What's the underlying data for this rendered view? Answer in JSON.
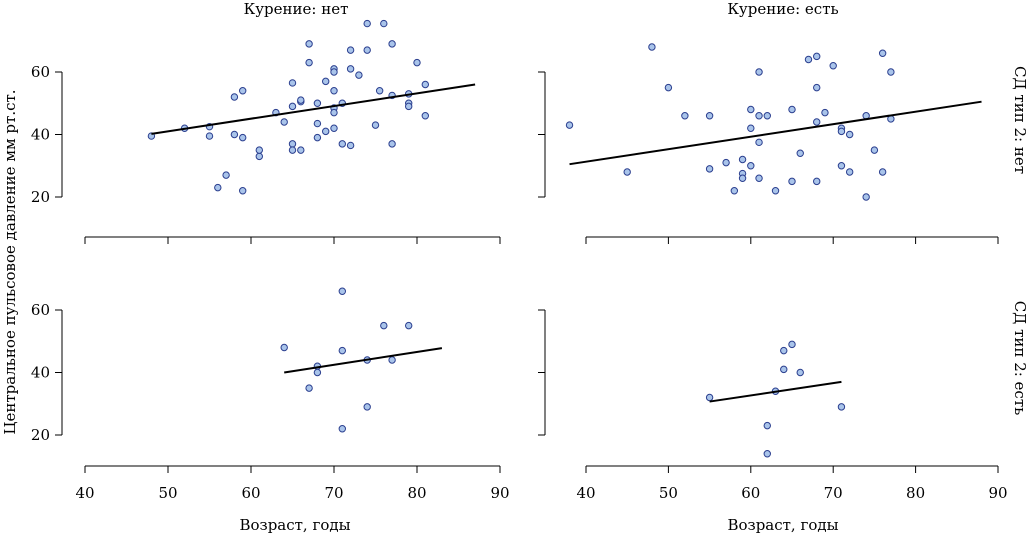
{
  "chart_data": {
    "type": "scatter",
    "layout": "2x2 facet grid",
    "ylabel": "Центральное пульсовое давление мм рт.ст.",
    "xlabel": "Возраст, годы",
    "col_labels": [
      "Курение: нет",
      "Курение: есть"
    ],
    "row_labels": [
      "СД тип 2: нет",
      "СД тип 2: есть"
    ],
    "xlim": [
      40,
      90
    ],
    "ylim": [
      12,
      76
    ],
    "x_ticks": [
      40,
      50,
      60,
      70,
      80,
      90
    ],
    "y_ticks": [
      20,
      40,
      60
    ],
    "grid": false,
    "point_color": "#a9c4ea",
    "point_edge_color": "#2b3f8f",
    "line_color": "#000000",
    "panels": [
      {
        "row": 0,
        "col": 0,
        "points": [
          [
            48,
            39.5
          ],
          [
            52,
            42
          ],
          [
            55,
            42.5
          ],
          [
            55,
            39.5
          ],
          [
            56,
            23
          ],
          [
            57,
            27
          ],
          [
            58,
            40
          ],
          [
            58,
            52
          ],
          [
            59,
            54
          ],
          [
            59,
            39
          ],
          [
            59,
            22
          ],
          [
            61,
            33
          ],
          [
            61,
            35
          ],
          [
            63,
            47
          ],
          [
            64,
            44
          ],
          [
            65,
            49
          ],
          [
            65,
            37
          ],
          [
            65,
            35
          ],
          [
            65,
            56.5
          ],
          [
            66,
            50.5
          ],
          [
            66,
            51
          ],
          [
            66,
            35
          ],
          [
            67,
            69
          ],
          [
            67,
            63
          ],
          [
            68,
            50
          ],
          [
            68,
            43.5
          ],
          [
            68,
            39
          ],
          [
            69,
            57
          ],
          [
            69,
            41
          ],
          [
            70,
            61
          ],
          [
            70,
            60
          ],
          [
            70,
            54
          ],
          [
            70,
            48.5
          ],
          [
            70,
            47
          ],
          [
            70,
            42
          ],
          [
            71,
            50
          ],
          [
            71,
            37
          ],
          [
            72,
            67
          ],
          [
            72,
            61
          ],
          [
            72,
            36.5
          ],
          [
            73,
            59
          ],
          [
            74,
            75.5
          ],
          [
            74,
            67
          ],
          [
            75,
            43
          ],
          [
            75.5,
            54
          ],
          [
            76,
            75.5
          ],
          [
            77,
            69
          ],
          [
            77,
            52.5
          ],
          [
            77,
            37
          ],
          [
            79,
            53
          ],
          [
            79,
            50
          ],
          [
            79,
            49
          ],
          [
            80,
            63
          ],
          [
            81,
            56
          ],
          [
            81,
            46
          ]
        ],
        "fit": [
          [
            48,
            40.2
          ],
          [
            87,
            56.0
          ]
        ]
      },
      {
        "row": 0,
        "col": 1,
        "points": [
          [
            38,
            43
          ],
          [
            45,
            28
          ],
          [
            48,
            68
          ],
          [
            50,
            55
          ],
          [
            52,
            46
          ],
          [
            55,
            29
          ],
          [
            55,
            46
          ],
          [
            57,
            31
          ],
          [
            58,
            22
          ],
          [
            59,
            32
          ],
          [
            59,
            27.5
          ],
          [
            59,
            26
          ],
          [
            60,
            48
          ],
          [
            60,
            42
          ],
          [
            60,
            30
          ],
          [
            61,
            60
          ],
          [
            61,
            46
          ],
          [
            61,
            37.5
          ],
          [
            61,
            26
          ],
          [
            62,
            46
          ],
          [
            63,
            22
          ],
          [
            65,
            48
          ],
          [
            65,
            25
          ],
          [
            66,
            34
          ],
          [
            67,
            64
          ],
          [
            68,
            65
          ],
          [
            68,
            55
          ],
          [
            68,
            44
          ],
          [
            68,
            25
          ],
          [
            69,
            47
          ],
          [
            70,
            62
          ],
          [
            71,
            42
          ],
          [
            71,
            41
          ],
          [
            71,
            30
          ],
          [
            72,
            40
          ],
          [
            72,
            28
          ],
          [
            74,
            46
          ],
          [
            74,
            20
          ],
          [
            75,
            35
          ],
          [
            76,
            66
          ],
          [
            76,
            28
          ],
          [
            77,
            60
          ],
          [
            77,
            45
          ]
        ],
        "fit": [
          [
            38,
            30.5
          ],
          [
            88,
            50.5
          ]
        ]
      },
      {
        "row": 1,
        "col": 0,
        "points": [
          [
            64,
            48
          ],
          [
            67,
            35
          ],
          [
            68,
            42
          ],
          [
            68,
            40
          ],
          [
            71,
            66
          ],
          [
            71,
            47
          ],
          [
            71,
            22
          ],
          [
            74,
            44
          ],
          [
            74,
            29
          ],
          [
            76,
            55
          ],
          [
            77,
            44
          ],
          [
            79,
            55
          ]
        ],
        "fit": [
          [
            64,
            40.0
          ],
          [
            83,
            47.8
          ]
        ]
      },
      {
        "row": 1,
        "col": 1,
        "points": [
          [
            55,
            32
          ],
          [
            62,
            23
          ],
          [
            62,
            14
          ],
          [
            63,
            34
          ],
          [
            64,
            47
          ],
          [
            64,
            41
          ],
          [
            65,
            49
          ],
          [
            66,
            40
          ],
          [
            71,
            29
          ]
        ],
        "fit": [
          [
            55,
            30.7
          ],
          [
            71,
            37.0
          ]
        ]
      }
    ]
  }
}
